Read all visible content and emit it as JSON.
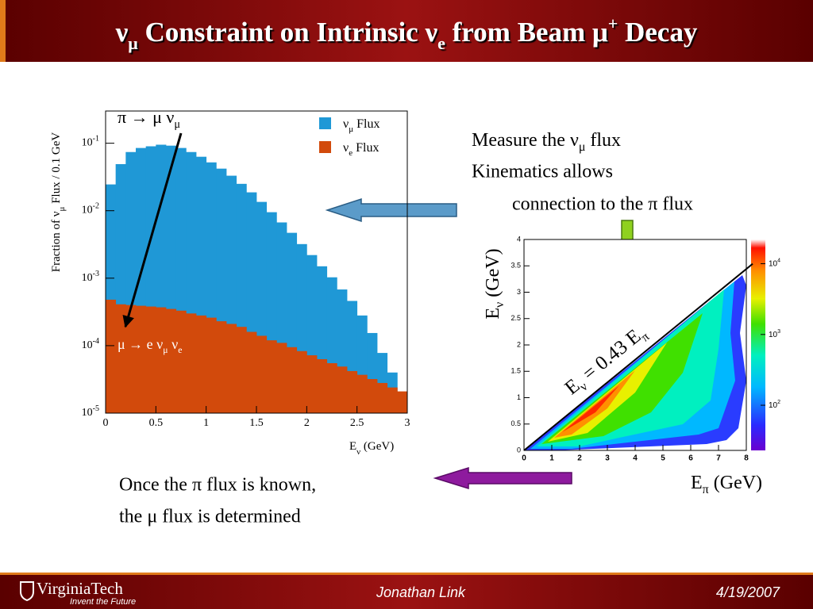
{
  "slide": {
    "title": [
      "ν",
      "μ",
      " Constraint on Intrinsic ν",
      "e",
      " from Beam μ",
      "+",
      " Decay"
    ],
    "text_right": {
      "line1": [
        "Measure the ν",
        "μ",
        " flux"
      ],
      "line2": "Kinematics allows",
      "line3": "connection to the π flux"
    },
    "text_bottom": [
      "Once the π flux is known,",
      "the μ flux is determined"
    ],
    "footer": {
      "logo": "VirginiaTech",
      "tagline": "Invent the Future",
      "author": "Jonathan Link",
      "date": "4/19/2007"
    }
  },
  "chart_data": [
    {
      "type": "histogram",
      "y_title": [
        "Fraction of ν",
        "μ",
        " Flux / 0.1 GeV"
      ],
      "x_title": [
        "E",
        "ν",
        " (GeV)"
      ],
      "bins": [
        0,
        0.1,
        0.2,
        0.3,
        0.4,
        0.5,
        0.6,
        0.7,
        0.8,
        0.9,
        1,
        1.1,
        1.2,
        1.3,
        1.4,
        1.5,
        1.6,
        1.7,
        1.8,
        1.9,
        2,
        2.1,
        2.2,
        2.3,
        2.4,
        2.5,
        2.6,
        2.7,
        2.8,
        2.9,
        3
      ],
      "series": [
        {
          "name": [
            "ν",
            "μ",
            " Flux"
          ],
          "color": "#1f98d6",
          "values": [
            0.0245,
            0.049,
            0.074,
            0.085,
            0.09,
            0.095,
            0.092,
            0.085,
            0.074,
            0.063,
            0.052,
            0.042,
            0.033,
            0.025,
            0.0187,
            0.0135,
            0.0095,
            0.0067,
            0.0047,
            0.0032,
            0.0022,
            0.0015,
            0.00103,
            0.00068,
            0.00046,
            0.00028,
            0.000154,
            7.8e-05,
            4e-05,
            1.77e-05
          ]
        },
        {
          "name": [
            "ν",
            "e",
            " Flux"
          ],
          "color": "#d24a0c",
          "values": [
            0.00048,
            0.00041,
            0.0004,
            0.00039,
            0.00038,
            0.00037,
            0.00035,
            0.00033,
            0.0003,
            0.00028,
            0.00026,
            0.00023,
            0.00021,
            0.00019,
            0.00016,
            0.00014,
            0.00012,
            0.00011,
            9.5e-05,
            8.3e-05,
            7.2e-05,
            6.3e-05,
            5.5e-05,
            4.9e-05,
            4.2e-05,
            3.7e-05,
            3.2e-05,
            2.8e-05,
            2.4e-05,
            2.1e-05
          ]
        }
      ],
      "xlim": [
        0,
        3
      ],
      "ylim": [
        1e-05,
        0.3
      ],
      "log_y": true,
      "xticks": [
        0,
        0.5,
        1,
        1.5,
        2,
        2.5,
        3
      ],
      "yticks": [
        {
          "value": 1e-05,
          "label": "10",
          "exponent": "-5"
        },
        {
          "value": 0.0001,
          "label": "10",
          "exponent": "-4"
        },
        {
          "value": 0.001,
          "label": "10",
          "exponent": "-3"
        },
        {
          "value": 0.01,
          "label": "10",
          "exponent": "-2"
        },
        {
          "value": 0.1,
          "label": "10",
          "exponent": "-1"
        }
      ],
      "annotations": [
        {
          "text": [
            "π → μ ν",
            "μ"
          ]
        },
        {
          "text": [
            "μ → e ν",
            "μ",
            " ν",
            "e"
          ]
        }
      ]
    },
    {
      "type": "heatmap",
      "x_title": [
        "E",
        "π",
        " (GeV)"
      ],
      "y_title": [
        "E",
        "ν",
        " (GeV)"
      ],
      "xlim": [
        0,
        8
      ],
      "ylim": [
        0,
        4
      ],
      "xticks": [
        0,
        1,
        2,
        3,
        4,
        5,
        6,
        7,
        8
      ],
      "yticks": [
        0,
        0.5,
        1,
        1.5,
        2,
        2.5,
        3,
        3.5,
        4
      ],
      "zlim": [
        23,
        22000
      ],
      "log_z": true,
      "zticks": [
        {
          "value": 100,
          "label": "10",
          "exponent": "2"
        },
        {
          "value": 1000,
          "label": "10",
          "exponent": "3"
        },
        {
          "value": 10000,
          "label": "10",
          "exponent": "4"
        }
      ],
      "line": {
        "slope": 0.43,
        "label": [
          "E",
          "ν",
          " = 0.43 E",
          "π"
        ]
      }
    }
  ]
}
